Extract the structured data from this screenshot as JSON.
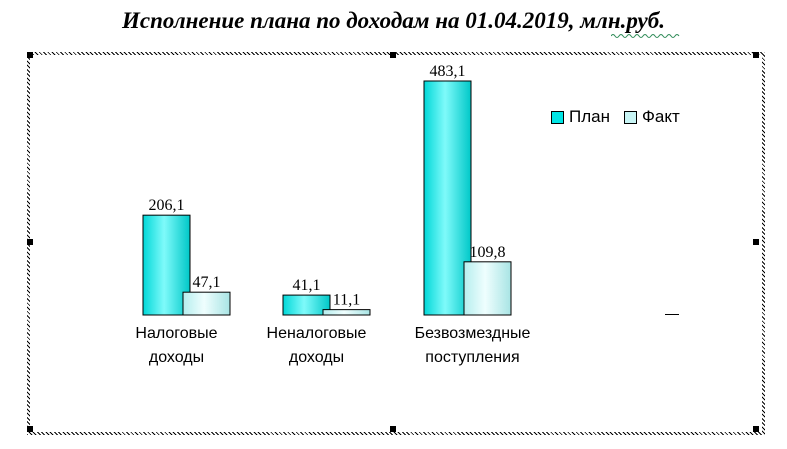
{
  "title": "Исполнение плана по доходам на 01.04.2019, млн.руб.",
  "colors": {
    "plan": "#00e5e5",
    "fact": "#c8f5f5",
    "text": "#000000"
  },
  "chart_data": {
    "type": "bar",
    "title": "Исполнение плана по доходам на 01.04.2019, млн.руб.",
    "categories": [
      [
        "Налоговые",
        "доходы"
      ],
      [
        "Неналоговые",
        "доходы"
      ],
      [
        "Безвозмездные",
        "поступления"
      ]
    ],
    "series": [
      {
        "name": "План",
        "values": [
          206.1,
          41.1,
          483.1
        ],
        "labels": [
          "206,1",
          "41,1",
          "483,1"
        ]
      },
      {
        "name": "Факт",
        "values": [
          47.1,
          11.1,
          109.8
        ],
        "labels": [
          "47,1",
          "11,1",
          "109,8"
        ]
      }
    ],
    "ylim": [
      0,
      483.1
    ],
    "grid": false,
    "legend_position": "top-right",
    "xlabel": "",
    "ylabel": ""
  }
}
